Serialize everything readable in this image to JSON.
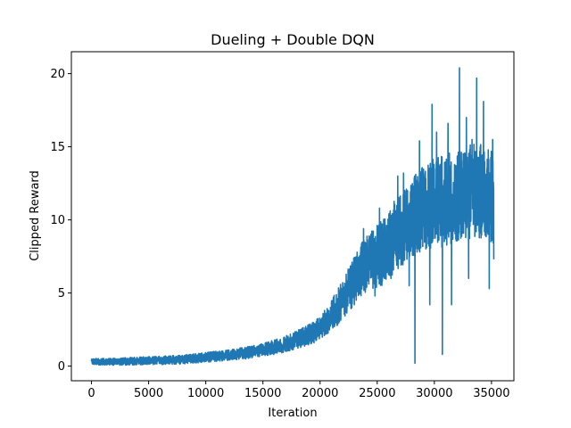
{
  "chart_data": {
    "type": "line",
    "title": "Dueling + Double DQN",
    "xlabel": "Iteration",
    "ylabel": "Clipped Reward",
    "xlim": [
      -1760,
      36960
    ],
    "ylim": [
      -1.0,
      21.5
    ],
    "xticks": [
      0,
      5000,
      10000,
      15000,
      20000,
      25000,
      30000,
      35000
    ],
    "xtick_labels": [
      "0",
      "5000",
      "10000",
      "15000",
      "20000",
      "25000",
      "30000",
      "35000"
    ],
    "yticks": [
      0,
      5,
      10,
      15,
      20
    ],
    "ytick_labels": [
      "0",
      "5",
      "10",
      "15",
      "20"
    ],
    "grid": false,
    "legend": "none",
    "series": [
      {
        "color": "#1f77b4",
        "x_range": [
          0,
          35200
        ],
        "trend": [
          [
            0,
            0.3
          ],
          [
            2000,
            0.3
          ],
          [
            4000,
            0.35
          ],
          [
            6000,
            0.4
          ],
          [
            8000,
            0.45
          ],
          [
            10000,
            0.6
          ],
          [
            12000,
            0.75
          ],
          [
            14000,
            0.95
          ],
          [
            16000,
            1.3
          ],
          [
            18000,
            1.8
          ],
          [
            19500,
            2.3
          ],
          [
            20500,
            3.0
          ],
          [
            21500,
            4.0
          ],
          [
            22500,
            5.2
          ],
          [
            23500,
            6.5
          ],
          [
            24500,
            7.3
          ],
          [
            25500,
            7.8
          ],
          [
            26500,
            8.8
          ],
          [
            27500,
            9.8
          ],
          [
            28500,
            10.5
          ],
          [
            29500,
            11.0
          ],
          [
            30500,
            11.2
          ],
          [
            31500,
            11.5
          ],
          [
            32500,
            11.8
          ],
          [
            33500,
            12.0
          ],
          [
            34500,
            12.0
          ],
          [
            35200,
            11.5
          ]
        ],
        "spikes": [
          [
            28300,
            0.2
          ],
          [
            30700,
            0.8
          ],
          [
            31500,
            4.2
          ],
          [
            34800,
            5.3
          ],
          [
            29600,
            4.2
          ],
          [
            27800,
            5.5
          ],
          [
            33000,
            6.0
          ],
          [
            26200,
            6.0
          ],
          [
            24800,
            4.8
          ],
          [
            23000,
            4.2
          ],
          [
            32200,
            20.4
          ],
          [
            33700,
            19.7
          ],
          [
            29800,
            17.9
          ],
          [
            34300,
            18.1
          ],
          [
            31200,
            16.6
          ],
          [
            30200,
            16.0
          ],
          [
            32800,
            17.0
          ],
          [
            28700,
            15.4
          ],
          [
            33300,
            15.5
          ],
          [
            35100,
            15.5
          ],
          [
            26800,
            13.0
          ],
          [
            25200,
            10.8
          ],
          [
            27300,
            13.2
          ],
          [
            23800,
            9.4
          ],
          [
            35200,
            7.3
          ]
        ],
        "noise_amplitude": [
          [
            0,
            0.2
          ],
          [
            10000,
            0.3
          ],
          [
            15000,
            0.4
          ],
          [
            20000,
            0.7
          ],
          [
            23000,
            1.5
          ],
          [
            26000,
            2.2
          ],
          [
            30000,
            2.8
          ],
          [
            35200,
            3.0
          ]
        ]
      }
    ]
  }
}
